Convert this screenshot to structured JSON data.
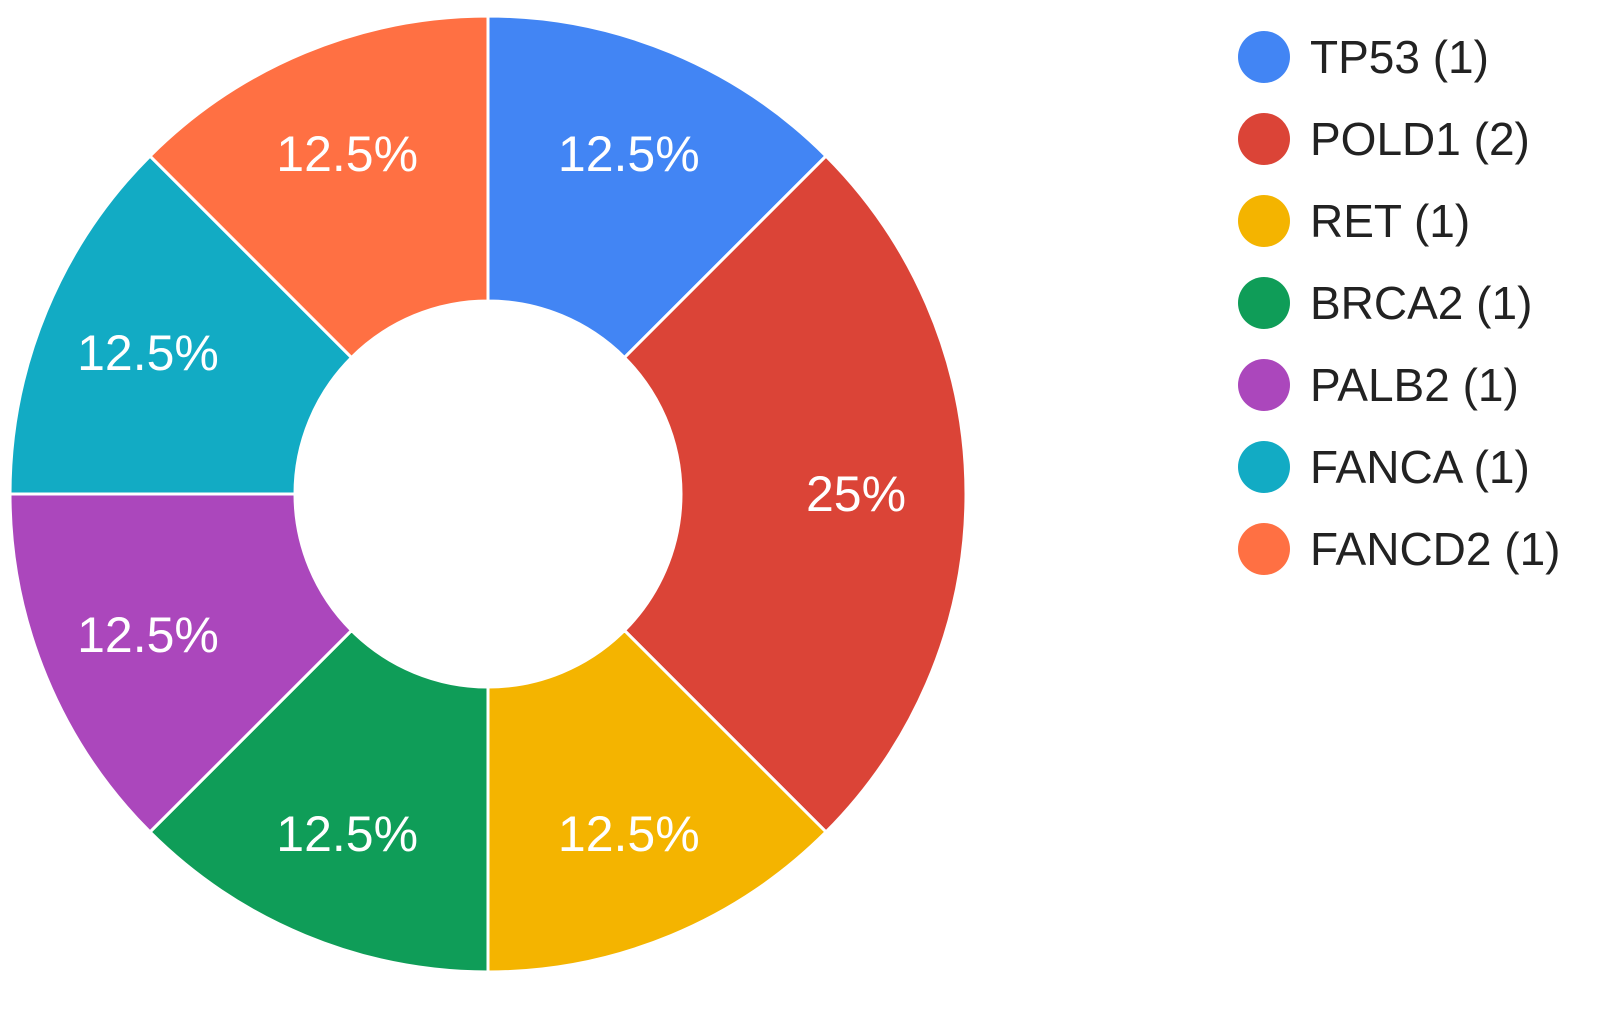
{
  "chart_data": {
    "type": "pie",
    "donut": true,
    "title": "",
    "legend_position": "right",
    "slices": [
      {
        "name": "TP53",
        "value": 1,
        "legend_label": "TP53 (1)",
        "percent_label": "12.5%",
        "color": "#4285F4"
      },
      {
        "name": "POLD1",
        "value": 2,
        "legend_label": "POLD1 (2)",
        "percent_label": "25%",
        "color": "#DB4437"
      },
      {
        "name": "RET",
        "value": 1,
        "legend_label": "RET (1)",
        "percent_label": "12.5%",
        "color": "#F4B400"
      },
      {
        "name": "BRCA2",
        "value": 1,
        "legend_label": "BRCA2 (1)",
        "percent_label": "12.5%",
        "color": "#0F9D58"
      },
      {
        "name": "PALB2",
        "value": 1,
        "legend_label": "PALB2 (1)",
        "percent_label": "12.5%",
        "color": "#AB47BC"
      },
      {
        "name": "FANCA",
        "value": 1,
        "legend_label": "FANCA (1)",
        "percent_label": "12.5%",
        "color": "#12ABC4"
      },
      {
        "name": "FANCD2",
        "value": 1,
        "legend_label": "FANCD2 (1)",
        "percent_label": "12.5%",
        "color": "#FF7043"
      }
    ]
  }
}
